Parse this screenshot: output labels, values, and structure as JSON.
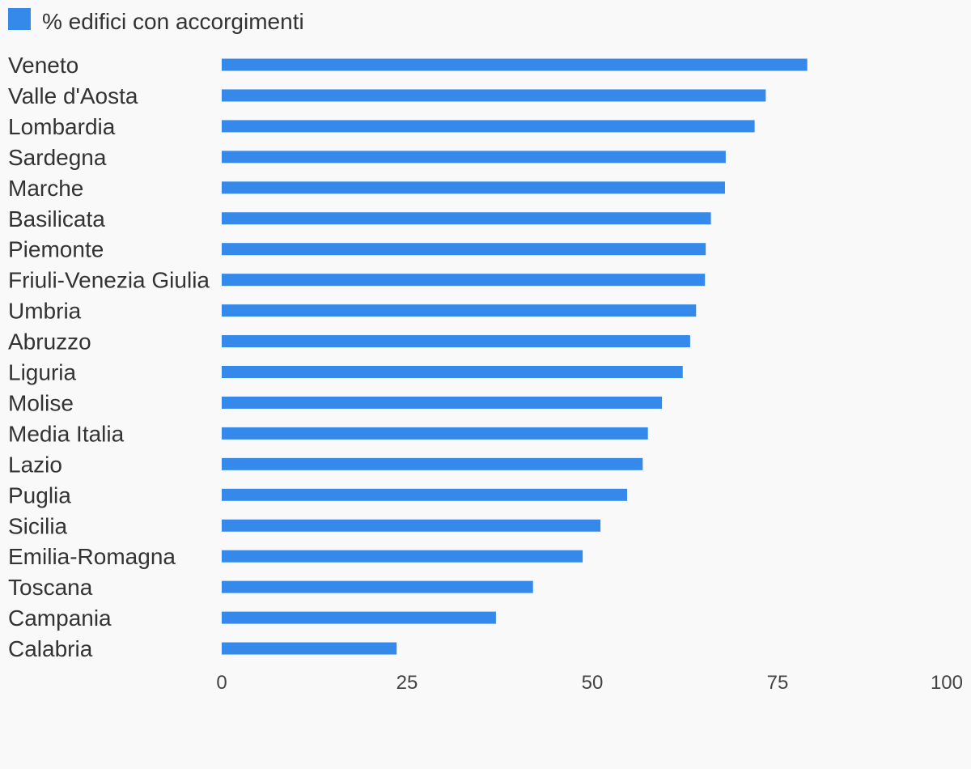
{
  "chart_data": {
    "type": "bar",
    "orientation": "horizontal",
    "categories": [
      "Veneto",
      "Valle d'Aosta",
      "Lombardia",
      "Sardegna",
      "Marche",
      "Basilicata",
      "Piemonte",
      "Friuli-Venezia Giulia",
      "Umbria",
      "Abruzzo",
      "Liguria",
      "Molise",
      "Media Italia",
      "Lazio",
      "Puglia",
      "Sicilia",
      "Emilia-Romagna",
      "Toscana",
      "Campania",
      "Calabria"
    ],
    "series": [
      {
        "name": "% edifici con accorgimenti",
        "color": "#3589eb",
        "values": [
          79,
          73.4,
          71.9,
          68,
          67.9,
          66,
          65.3,
          65.2,
          64,
          63.2,
          62.2,
          59.4,
          57.5,
          56.8,
          54.7,
          51.1,
          48.7,
          42,
          37,
          23.6
        ]
      }
    ],
    "xlim": [
      0,
      100
    ],
    "xticks": [
      0,
      25,
      50,
      75,
      100
    ],
    "legend": "top-left",
    "grid": false
  }
}
